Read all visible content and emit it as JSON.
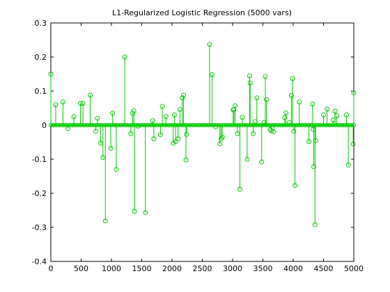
{
  "chart_data": {
    "type": "stem",
    "title": "L1-Regularized Logistic Regression (5000 vars)",
    "xlabel": "",
    "ylabel": "",
    "xlim": [
      0,
      5000
    ],
    "ylim": [
      -0.4,
      0.3
    ],
    "xticks": [
      "0",
      "500",
      "1000",
      "1500",
      "2000",
      "2500",
      "3000",
      "3500",
      "4000",
      "4500",
      "5000"
    ],
    "yticks": [
      "-0.4",
      "-0.3",
      "-0.2",
      "-0.1",
      "0",
      "0.1",
      "0.2",
      "0.3"
    ],
    "xtick_values": [
      0,
      500,
      1000,
      1500,
      2000,
      2500,
      3000,
      3500,
      4000,
      4500,
      5000
    ],
    "ytick_values": [
      -0.4,
      -0.3,
      -0.2,
      -0.1,
      0,
      0.1,
      0.2,
      0.3
    ],
    "grid": false,
    "colors": {
      "stem": "#00cc00",
      "axes": "#000000",
      "background": "#ffffff"
    },
    "series": [
      {
        "x": [
          0,
          80,
          200,
          280,
          380,
          490,
          530,
          650,
          740,
          770,
          820,
          860,
          900,
          990,
          1020,
          1080,
          1220,
          1320,
          1350,
          1370,
          1380,
          1440,
          1560,
          1680,
          1700,
          1810,
          1840,
          1900,
          2020,
          2040,
          2060,
          2100,
          2130,
          2170,
          2190,
          2230,
          2240,
          2620,
          2660,
          2720,
          2790,
          2810,
          2830,
          3010,
          3020,
          3040,
          3080,
          3120,
          3160,
          3240,
          3280,
          3290,
          3340,
          3370,
          3400,
          3480,
          3520,
          3540,
          3560,
          3620,
          3640,
          3680,
          3860,
          3880,
          3940,
          3970,
          3990,
          4010,
          4030,
          4100,
          4260,
          4320,
          4330,
          4340,
          4360,
          4370,
          4500,
          4560,
          4660,
          4690,
          4720,
          4880,
          4910,
          4990,
          5000
        ],
        "y": [
          0.15,
          0.06,
          0.068,
          -0.01,
          0.025,
          0.064,
          0.064,
          0.088,
          -0.018,
          0.02,
          -0.053,
          -0.095,
          -0.281,
          -0.068,
          0.035,
          -0.13,
          0.2,
          -0.025,
          0.035,
          0.042,
          -0.253,
          -0.003,
          -0.257,
          0.013,
          -0.04,
          -0.028,
          0.055,
          0.025,
          -0.053,
          0.03,
          -0.048,
          -0.04,
          0.046,
          0.08,
          0.088,
          -0.102,
          -0.027,
          0.237,
          0.148,
          -0.005,
          -0.055,
          -0.04,
          -0.035,
          0.045,
          0.045,
          0.057,
          -0.025,
          -0.188,
          0.023,
          -0.1,
          0.145,
          0.124,
          -0.025,
          0.01,
          0.08,
          -0.108,
          0.008,
          0.143,
          0.075,
          -0.013,
          -0.017,
          -0.02,
          0.022,
          0.036,
          0.008,
          0.087,
          0.137,
          -0.018,
          -0.177,
          0.068,
          -0.048,
          0.062,
          -0.012,
          -0.122,
          -0.292,
          -0.045,
          0.03,
          0.047,
          0.015,
          0.041,
          0.027,
          0.03,
          -0.117,
          -0.055,
          0.095
        ]
      }
    ]
  }
}
